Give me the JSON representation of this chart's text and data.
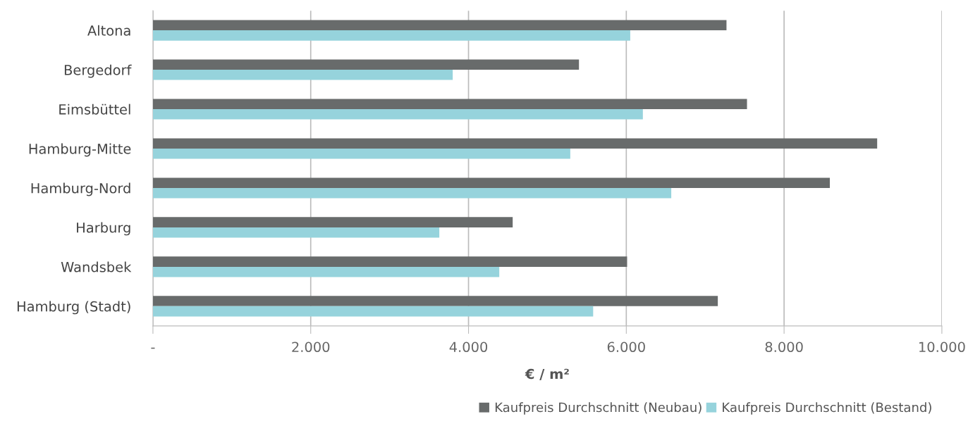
{
  "chart_data": {
    "type": "bar",
    "orientation": "horizontal",
    "xlabel": "€ / m²",
    "categories": [
      "Altona",
      "Bergedorf",
      "Eimsbüttel",
      "Hamburg-Mitte",
      "Hamburg-Nord",
      "Harburg",
      "Wandsbek",
      "Hamburg (Stadt)"
    ],
    "series": [
      {
        "name": "Kaufpreis Durchschnitt (Neubau)",
        "color": "#686b6b",
        "values": [
          7270,
          5400,
          7530,
          9180,
          8580,
          4560,
          6010,
          7160
        ]
      },
      {
        "name": "Kaufpreis Durchschnitt (Bestand)",
        "color": "#96d3dc",
        "values": [
          6050,
          3800,
          6210,
          5290,
          6570,
          3630,
          4390,
          5580
        ]
      }
    ],
    "xlim": [
      0,
      10000
    ],
    "xticks": [
      {
        "value": 0,
        "label": "-"
      },
      {
        "value": 2000,
        "label": "2.000"
      },
      {
        "value": 4000,
        "label": "4.000"
      },
      {
        "value": 6000,
        "label": "6.000"
      },
      {
        "value": 8000,
        "label": "8.000"
      },
      {
        "value": 10000,
        "label": "10.000"
      }
    ],
    "grid": "x",
    "legend": "bottom right"
  }
}
